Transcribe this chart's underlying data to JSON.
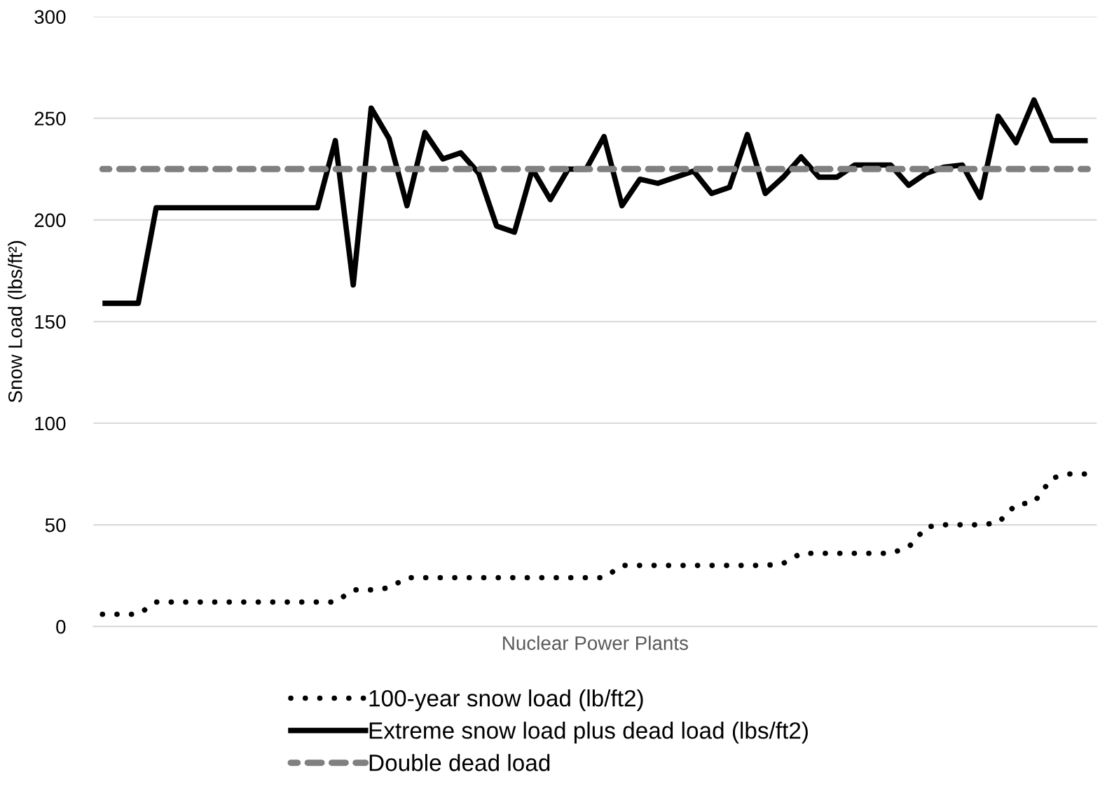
{
  "chart_data": {
    "type": "line",
    "xlabel": "Nuclear Power Plants",
    "ylabel": "Snow Load (lbs/ft²)",
    "categories": [
      null,
      null,
      null,
      null,
      null,
      null,
      null,
      null,
      null,
      null,
      null,
      null,
      null,
      null,
      null,
      null,
      null,
      null,
      null,
      null,
      null,
      null,
      null,
      null,
      null,
      null,
      null,
      null,
      null,
      null,
      null,
      null,
      null,
      null,
      null,
      null,
      null,
      null,
      null,
      null,
      null,
      null,
      null,
      null,
      null,
      null,
      null,
      null,
      null,
      null,
      null,
      null,
      null,
      null,
      null,
      null
    ],
    "series": [
      {
        "name": "100-year snow load (lb/ft2)",
        "color": "#000000",
        "line_style": "dotted",
        "values": [
          6,
          6,
          6,
          12,
          12,
          12,
          12,
          12,
          12,
          12,
          12,
          12,
          12,
          12,
          18,
          18,
          19,
          24,
          24,
          24,
          24,
          24,
          24,
          24,
          24,
          24,
          24,
          24,
          24,
          30,
          30,
          30,
          30,
          30,
          30,
          30,
          30,
          30,
          31,
          36,
          36,
          36,
          36,
          36,
          36,
          39,
          49,
          50,
          50,
          50,
          51,
          60,
          61,
          73,
          75,
          75
        ]
      },
      {
        "name": "Extreme snow load plus dead load (lbs/ft2)",
        "color": "#000000",
        "line_style": "solid",
        "values": [
          159,
          159,
          159,
          206,
          206,
          206,
          206,
          206,
          206,
          206,
          206,
          206,
          206,
          239,
          168,
          255,
          240,
          207,
          243,
          230,
          233,
          223,
          197,
          194,
          225,
          210,
          225,
          225,
          241,
          207,
          220,
          218,
          221,
          224,
          213,
          216,
          242,
          213,
          221,
          231,
          221,
          221,
          227,
          227,
          227,
          217,
          223,
          226,
          227,
          211,
          251,
          238,
          259,
          239,
          239,
          239
        ]
      },
      {
        "name": "Double dead load",
        "color": "#808080",
        "line_style": "dashed",
        "values": [
          225,
          225,
          225,
          225,
          225,
          225,
          225,
          225,
          225,
          225,
          225,
          225,
          225,
          225,
          225,
          225,
          225,
          225,
          225,
          225,
          225,
          225,
          225,
          225,
          225,
          225,
          225,
          225,
          225,
          225,
          225,
          225,
          225,
          225,
          225,
          225,
          225,
          225,
          225,
          225,
          225,
          225,
          225,
          225,
          225,
          225,
          225,
          225,
          225,
          225,
          225,
          225,
          225,
          225,
          225,
          225
        ]
      }
    ],
    "ylim": [
      0,
      300
    ],
    "yticks": [
      0,
      50,
      100,
      150,
      200,
      250,
      300
    ],
    "grid": "y",
    "legend": "bottom"
  }
}
